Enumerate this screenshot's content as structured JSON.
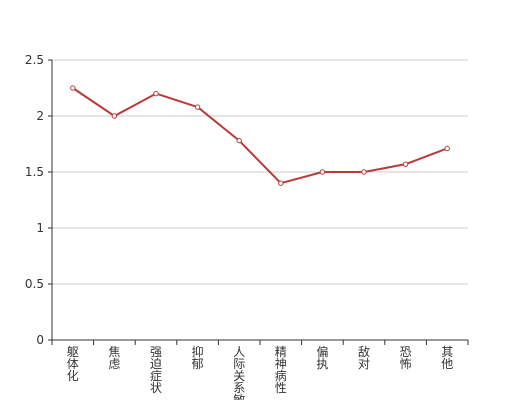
{
  "chart_data": {
    "type": "line",
    "categories": [
      "躯体化",
      "焦虑",
      "强迫症状",
      "抑郁",
      "人际关系敏感",
      "精神病性",
      "偏执",
      "敌对",
      "恐怖",
      "其他"
    ],
    "series": [
      {
        "values": [
          2.25,
          2.0,
          2.2,
          2.08,
          1.78,
          1.4,
          1.5,
          1.5,
          1.57,
          1.71
        ]
      }
    ],
    "yticks": [
      "0",
      "0.5",
      "1",
      "1.5",
      "2",
      "2.5"
    ],
    "ylim": [
      0,
      2.5
    ],
    "grid": true,
    "title": "",
    "xlabel": "",
    "ylabel": "",
    "colors": {
      "line": "#b83b3b",
      "grid": "#cccccc",
      "axis": "#333333",
      "point_fill": "#ffffff"
    }
  }
}
